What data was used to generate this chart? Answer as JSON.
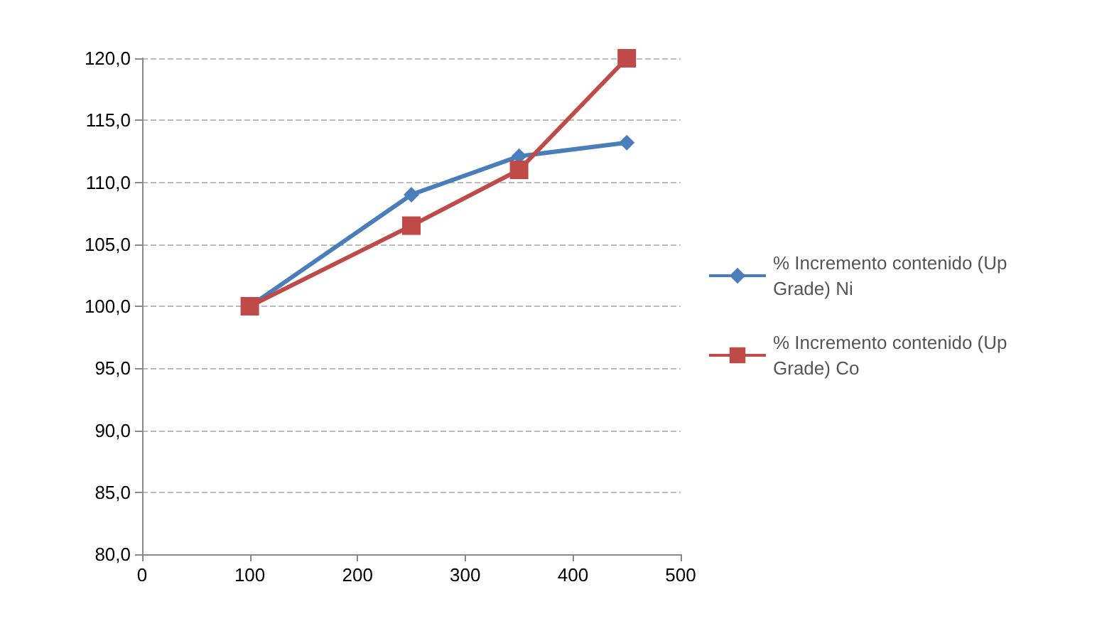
{
  "chart_data": {
    "type": "line",
    "x": [
      100,
      250,
      350,
      450
    ],
    "series": [
      {
        "name": "% Incremento contenido (Up Grade) Ni",
        "color": "#4a7ebb",
        "values": [
          100,
          109.0,
          112.1,
          113.2
        ],
        "marker": "diamond"
      },
      {
        "name": "% Incremento contenido (Up Grade) Co",
        "color": "#be4b48",
        "values": [
          100,
          106.5,
          111.0,
          120.0
        ],
        "marker": "square"
      }
    ],
    "xlim": [
      0,
      500
    ],
    "xticks": [
      0,
      100,
      200,
      300,
      400,
      500
    ],
    "ylim": [
      80,
      120
    ],
    "yticks": [
      {
        "value": 80,
        "label": "80,0"
      },
      {
        "value": 85,
        "label": "85,0"
      },
      {
        "value": 90,
        "label": "90,0"
      },
      {
        "value": 95,
        "label": "95,0"
      },
      {
        "value": 100,
        "label": "100,0"
      },
      {
        "value": 105,
        "label": "105,0"
      },
      {
        "value": 110,
        "label": "110,0"
      },
      {
        "value": 115,
        "label": "115,0"
      },
      {
        "value": 120,
        "label": "120,0"
      }
    ],
    "grid": "y",
    "legend": "right"
  }
}
